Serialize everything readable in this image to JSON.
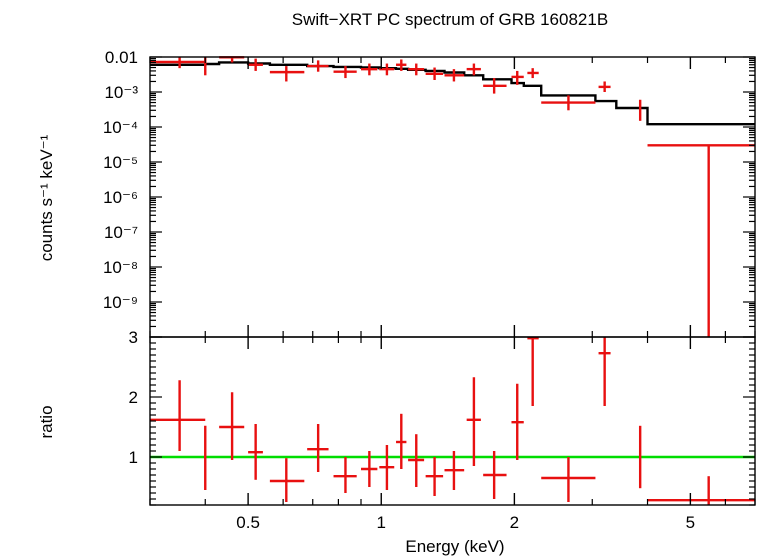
{
  "chart_data": {
    "type": "scatter",
    "title": "Swift−XRT PC spectrum of GRB 160821B",
    "xlabel": "Energy (keV)",
    "xscale": "log",
    "xlim": [
      0.3,
      7.0
    ],
    "x_ticks": [
      "0.5",
      "1",
      "2",
      "5"
    ],
    "model_color": "#000000",
    "data_color": "#e81010",
    "ratio_line_color": "#00dd00",
    "top_panel": {
      "ylabel": "counts s⁻¹ keV⁻¹",
      "yscale": "log",
      "ylim": [
        1e-10,
        0.01
      ],
      "y_ticks": [
        {
          "value": 0.01,
          "label": "0.01"
        },
        {
          "value": 0.001,
          "label": "10⁻³"
        },
        {
          "value": 0.0001,
          "label": "10⁻⁴"
        },
        {
          "value": 1e-05,
          "label": "10⁻⁵"
        },
        {
          "value": 1e-06,
          "label": "10⁻⁶"
        },
        {
          "value": 1e-07,
          "label": "10⁻⁷"
        },
        {
          "value": 1e-08,
          "label": "10⁻⁸"
        },
        {
          "value": 1e-09,
          "label": "10⁻⁹"
        }
      ],
      "data_series": {
        "name": "data",
        "points": [
          {
            "x": 0.35,
            "xlo": 0.3,
            "xhi": 0.4,
            "y": 0.0072,
            "ylo": 0.0048,
            "yhi": 0.01
          },
          {
            "x": 0.4,
            "xlo": 0.4,
            "xhi": 0.4,
            "y": 0.006,
            "ylo": 0.003,
            "yhi": 0.011
          },
          {
            "x": 0.46,
            "xlo": 0.43,
            "xhi": 0.49,
            "y": 0.0098,
            "ylo": 0.007,
            "yhi": 0.014
          },
          {
            "x": 0.52,
            "xlo": 0.5,
            "xhi": 0.54,
            "y": 0.006,
            "ylo": 0.004,
            "yhi": 0.009
          },
          {
            "x": 0.61,
            "xlo": 0.56,
            "xhi": 0.67,
            "y": 0.0037,
            "ylo": 0.002,
            "yhi": 0.0055
          },
          {
            "x": 0.72,
            "xlo": 0.68,
            "xhi": 0.76,
            "y": 0.0055,
            "ylo": 0.0038,
            "yhi": 0.008
          },
          {
            "x": 0.83,
            "xlo": 0.78,
            "xhi": 0.88,
            "y": 0.0038,
            "ylo": 0.0025,
            "yhi": 0.0055
          },
          {
            "x": 0.94,
            "xlo": 0.9,
            "xhi": 0.98,
            "y": 0.0045,
            "ylo": 0.003,
            "yhi": 0.0065
          },
          {
            "x": 1.03,
            "xlo": 0.99,
            "xhi": 1.07,
            "y": 0.0045,
            "ylo": 0.003,
            "yhi": 0.0065
          },
          {
            "x": 1.11,
            "xlo": 1.08,
            "xhi": 1.14,
            "y": 0.006,
            "ylo": 0.004,
            "yhi": 0.0085
          },
          {
            "x": 1.2,
            "xlo": 1.15,
            "xhi": 1.25,
            "y": 0.0045,
            "ylo": 0.003,
            "yhi": 0.0065
          },
          {
            "x": 1.32,
            "xlo": 1.26,
            "xhi": 1.38,
            "y": 0.0033,
            "ylo": 0.0022,
            "yhi": 0.005
          },
          {
            "x": 1.46,
            "xlo": 1.39,
            "xhi": 1.54,
            "y": 0.003,
            "ylo": 0.002,
            "yhi": 0.0045
          },
          {
            "x": 1.62,
            "xlo": 1.56,
            "xhi": 1.68,
            "y": 0.0045,
            "ylo": 0.003,
            "yhi": 0.0065
          },
          {
            "x": 1.8,
            "xlo": 1.7,
            "xhi": 1.92,
            "y": 0.0015,
            "ylo": 0.0009,
            "yhi": 0.0025
          },
          {
            "x": 2.03,
            "xlo": 1.97,
            "xhi": 2.1,
            "y": 0.0027,
            "ylo": 0.0016,
            "yhi": 0.004
          },
          {
            "x": 2.2,
            "xlo": 2.14,
            "xhi": 2.27,
            "y": 0.0035,
            "ylo": 0.0025,
            "yhi": 0.0048
          },
          {
            "x": 2.65,
            "xlo": 2.3,
            "xhi": 3.05,
            "y": 0.0005,
            "ylo": 0.0003,
            "yhi": 0.0008
          },
          {
            "x": 3.2,
            "xlo": 3.1,
            "xhi": 3.3,
            "y": 0.0014,
            "ylo": 0.001,
            "yhi": 0.002
          },
          {
            "x": 3.85,
            "xlo": 3.85,
            "xhi": 3.85,
            "y": 0.0003,
            "ylo": 0.00015,
            "yhi": 0.0006
          },
          {
            "x": 5.5,
            "xlo": 4.0,
            "xhi": 7.0,
            "y": 3e-05,
            "ylo": 1e-10,
            "yhi": 3e-05
          }
        ]
      },
      "model_series": {
        "name": "model",
        "edges": [
          0.3,
          0.4,
          0.43,
          0.5,
          0.56,
          0.68,
          0.78,
          0.9,
          0.99,
          1.08,
          1.15,
          1.26,
          1.39,
          1.54,
          1.7,
          1.97,
          2.1,
          2.3,
          3.05,
          3.4,
          4.0,
          7.0
        ],
        "values": [
          0.006,
          0.0063,
          0.007,
          0.0065,
          0.006,
          0.0055,
          0.0052,
          0.005,
          0.0048,
          0.0046,
          0.0043,
          0.004,
          0.0036,
          0.003,
          0.0023,
          0.0018,
          0.0015,
          0.0008,
          0.00055,
          0.00035,
          0.00012
        ]
      }
    },
    "bottom_panel": {
      "ylabel": "ratio",
      "ylim": [
        0.2,
        3.0
      ],
      "y_ticks": [
        {
          "value": 1,
          "label": "1"
        },
        {
          "value": 2,
          "label": "2"
        },
        {
          "value": 3,
          "label": "3"
        }
      ],
      "reference_line": 1.0,
      "ratio_series": {
        "name": "ratio",
        "points": [
          {
            "x": 0.35,
            "xlo": 0.3,
            "xhi": 0.4,
            "y": 1.62,
            "ylo": 1.1,
            "yhi": 2.28
          },
          {
            "x": 0.4,
            "xlo": 0.4,
            "xhi": 0.4,
            "y": 1.0,
            "ylo": 0.45,
            "yhi": 1.52
          },
          {
            "x": 0.46,
            "xlo": 0.43,
            "xhi": 0.49,
            "y": 1.5,
            "ylo": 0.95,
            "yhi": 2.08
          },
          {
            "x": 0.52,
            "xlo": 0.5,
            "xhi": 0.54,
            "y": 1.08,
            "ylo": 0.62,
            "yhi": 1.55
          },
          {
            "x": 0.61,
            "xlo": 0.56,
            "xhi": 0.67,
            "y": 0.6,
            "ylo": 0.25,
            "yhi": 0.98
          },
          {
            "x": 0.72,
            "xlo": 0.68,
            "xhi": 0.76,
            "y": 1.13,
            "ylo": 0.75,
            "yhi": 1.55
          },
          {
            "x": 0.83,
            "xlo": 0.78,
            "xhi": 0.88,
            "y": 0.68,
            "ylo": 0.4,
            "yhi": 1.0
          },
          {
            "x": 0.94,
            "xlo": 0.9,
            "xhi": 0.98,
            "y": 0.8,
            "ylo": 0.5,
            "yhi": 1.1
          },
          {
            "x": 1.03,
            "xlo": 0.99,
            "xhi": 1.07,
            "y": 0.83,
            "ylo": 0.45,
            "yhi": 1.2
          },
          {
            "x": 1.11,
            "xlo": 1.08,
            "xhi": 1.14,
            "y": 1.25,
            "ylo": 0.8,
            "yhi": 1.72
          },
          {
            "x": 1.2,
            "xlo": 1.15,
            "xhi": 1.25,
            "y": 0.95,
            "ylo": 0.5,
            "yhi": 1.38
          },
          {
            "x": 1.32,
            "xlo": 1.26,
            "xhi": 1.38,
            "y": 0.68,
            "ylo": 0.35,
            "yhi": 1.0
          },
          {
            "x": 1.46,
            "xlo": 1.39,
            "xhi": 1.54,
            "y": 0.78,
            "ylo": 0.45,
            "yhi": 1.1
          },
          {
            "x": 1.62,
            "xlo": 1.56,
            "xhi": 1.68,
            "y": 1.62,
            "ylo": 0.85,
            "yhi": 2.33
          },
          {
            "x": 1.8,
            "xlo": 1.7,
            "xhi": 1.92,
            "y": 0.7,
            "ylo": 0.3,
            "yhi": 1.1
          },
          {
            "x": 2.03,
            "xlo": 1.97,
            "xhi": 2.1,
            "y": 1.58,
            "ylo": 0.95,
            "yhi": 2.22
          },
          {
            "x": 2.2,
            "xlo": 2.14,
            "xhi": 2.27,
            "y": 2.98,
            "ylo": 1.85,
            "yhi": 3.0
          },
          {
            "x": 2.65,
            "xlo": 2.3,
            "xhi": 3.05,
            "y": 0.65,
            "ylo": 0.25,
            "yhi": 1.0
          },
          {
            "x": 3.2,
            "xlo": 3.1,
            "xhi": 3.3,
            "y": 2.73,
            "ylo": 1.85,
            "yhi": 3.0
          },
          {
            "x": 3.85,
            "xlo": 3.85,
            "xhi": 3.85,
            "y": 1.0,
            "ylo": 0.48,
            "yhi": 1.52
          },
          {
            "x": 5.5,
            "xlo": 4.0,
            "xhi": 7.0,
            "y": 0.28,
            "ylo": 0.2,
            "yhi": 0.68
          }
        ]
      }
    }
  }
}
